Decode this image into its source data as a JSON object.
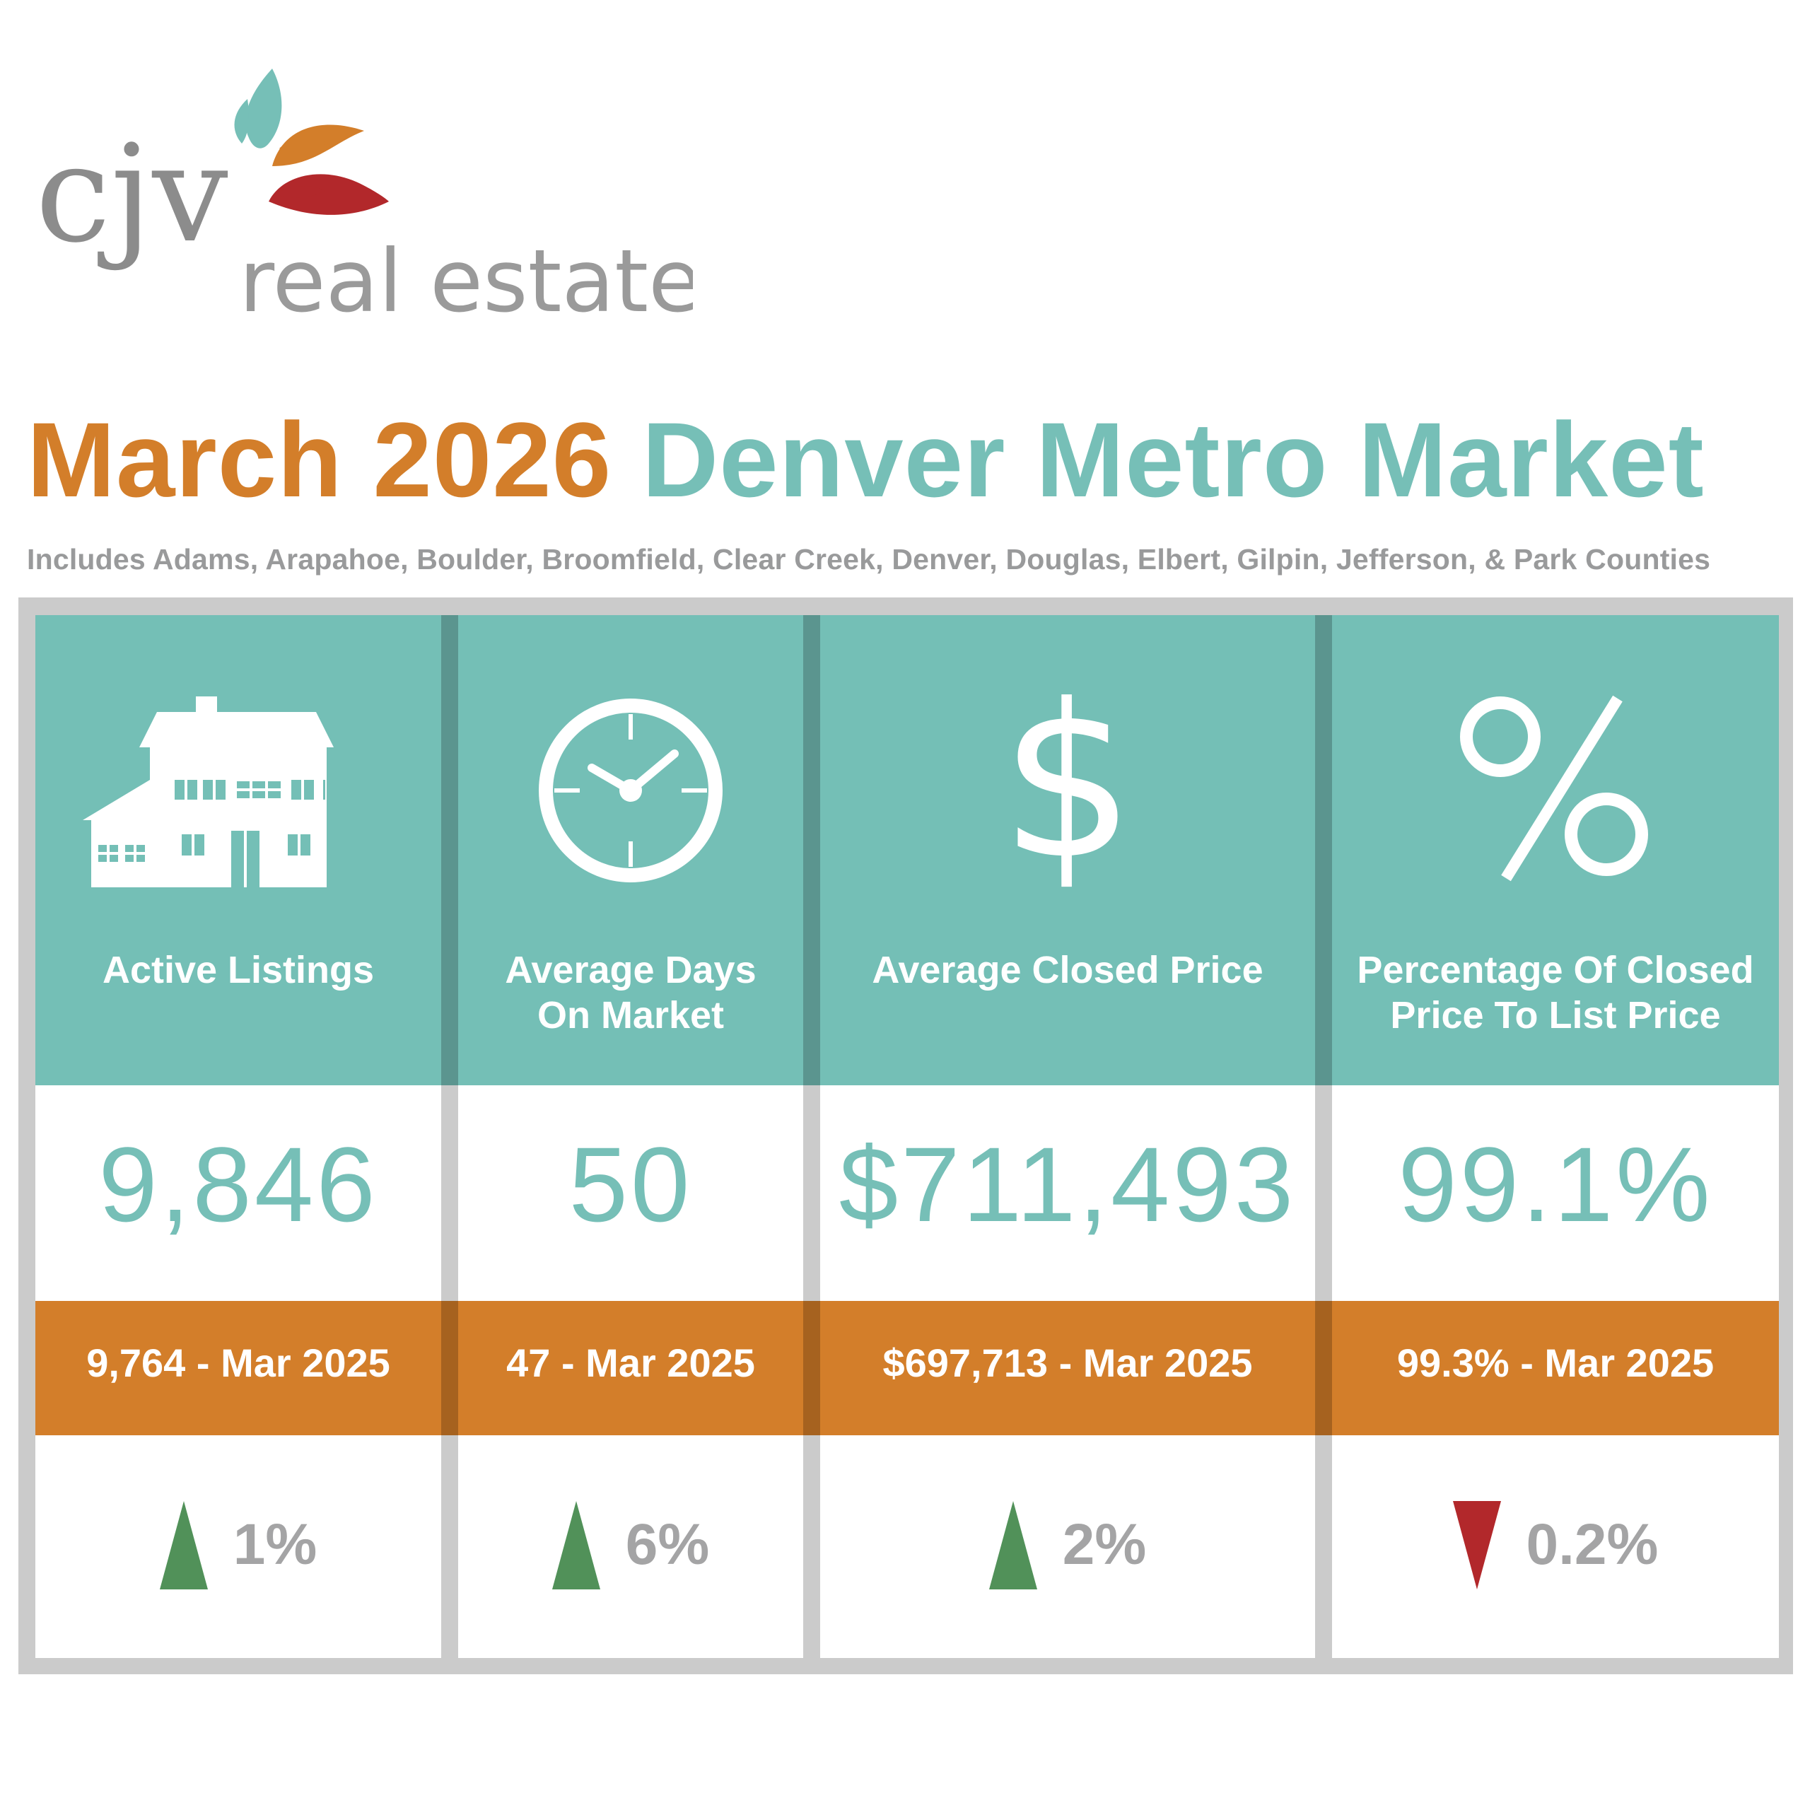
{
  "brand": {
    "logo_name": "cjv",
    "logo_tagline": "real estate",
    "colors": {
      "teal": "#76bfb7",
      "orange": "#d37e2a",
      "red": "#b2282b",
      "gray": "#8c8c8c"
    }
  },
  "header": {
    "title_month": "March 2026",
    "title_region": "Denver Metro Market",
    "subtitle": "Includes Adams, Arapahoe, Boulder, Broomfield, Clear Creek, Denver, Douglas, Elbert, Gilpin, Jefferson, & Park Counties"
  },
  "metrics": [
    {
      "icon": "house-icon",
      "label_line1": "Active Listings",
      "label_line2": "",
      "value": "9,846",
      "previous": "9,764 - Mar 2025",
      "trend": "up",
      "change": "1%"
    },
    {
      "icon": "clock-icon",
      "label_line1": "Average Days",
      "label_line2": "On Market",
      "value": "50",
      "previous": "47 - Mar 2025",
      "trend": "up",
      "change": "6%"
    },
    {
      "icon": "dollar-icon",
      "label_line1": "Average Closed Price",
      "label_line2": "",
      "value": "$711,493",
      "previous": "$697,713 - Mar 2025",
      "trend": "up",
      "change": "2%"
    },
    {
      "icon": "percent-icon",
      "label_line1": "Percentage Of Closed",
      "label_line2": "Price To List Price",
      "value": "99.1%",
      "previous": "99.3% - Mar 2025",
      "trend": "down",
      "change": "0.2%"
    }
  ],
  "trend_colors": {
    "up": "#519159",
    "down": "#b2282b"
  }
}
